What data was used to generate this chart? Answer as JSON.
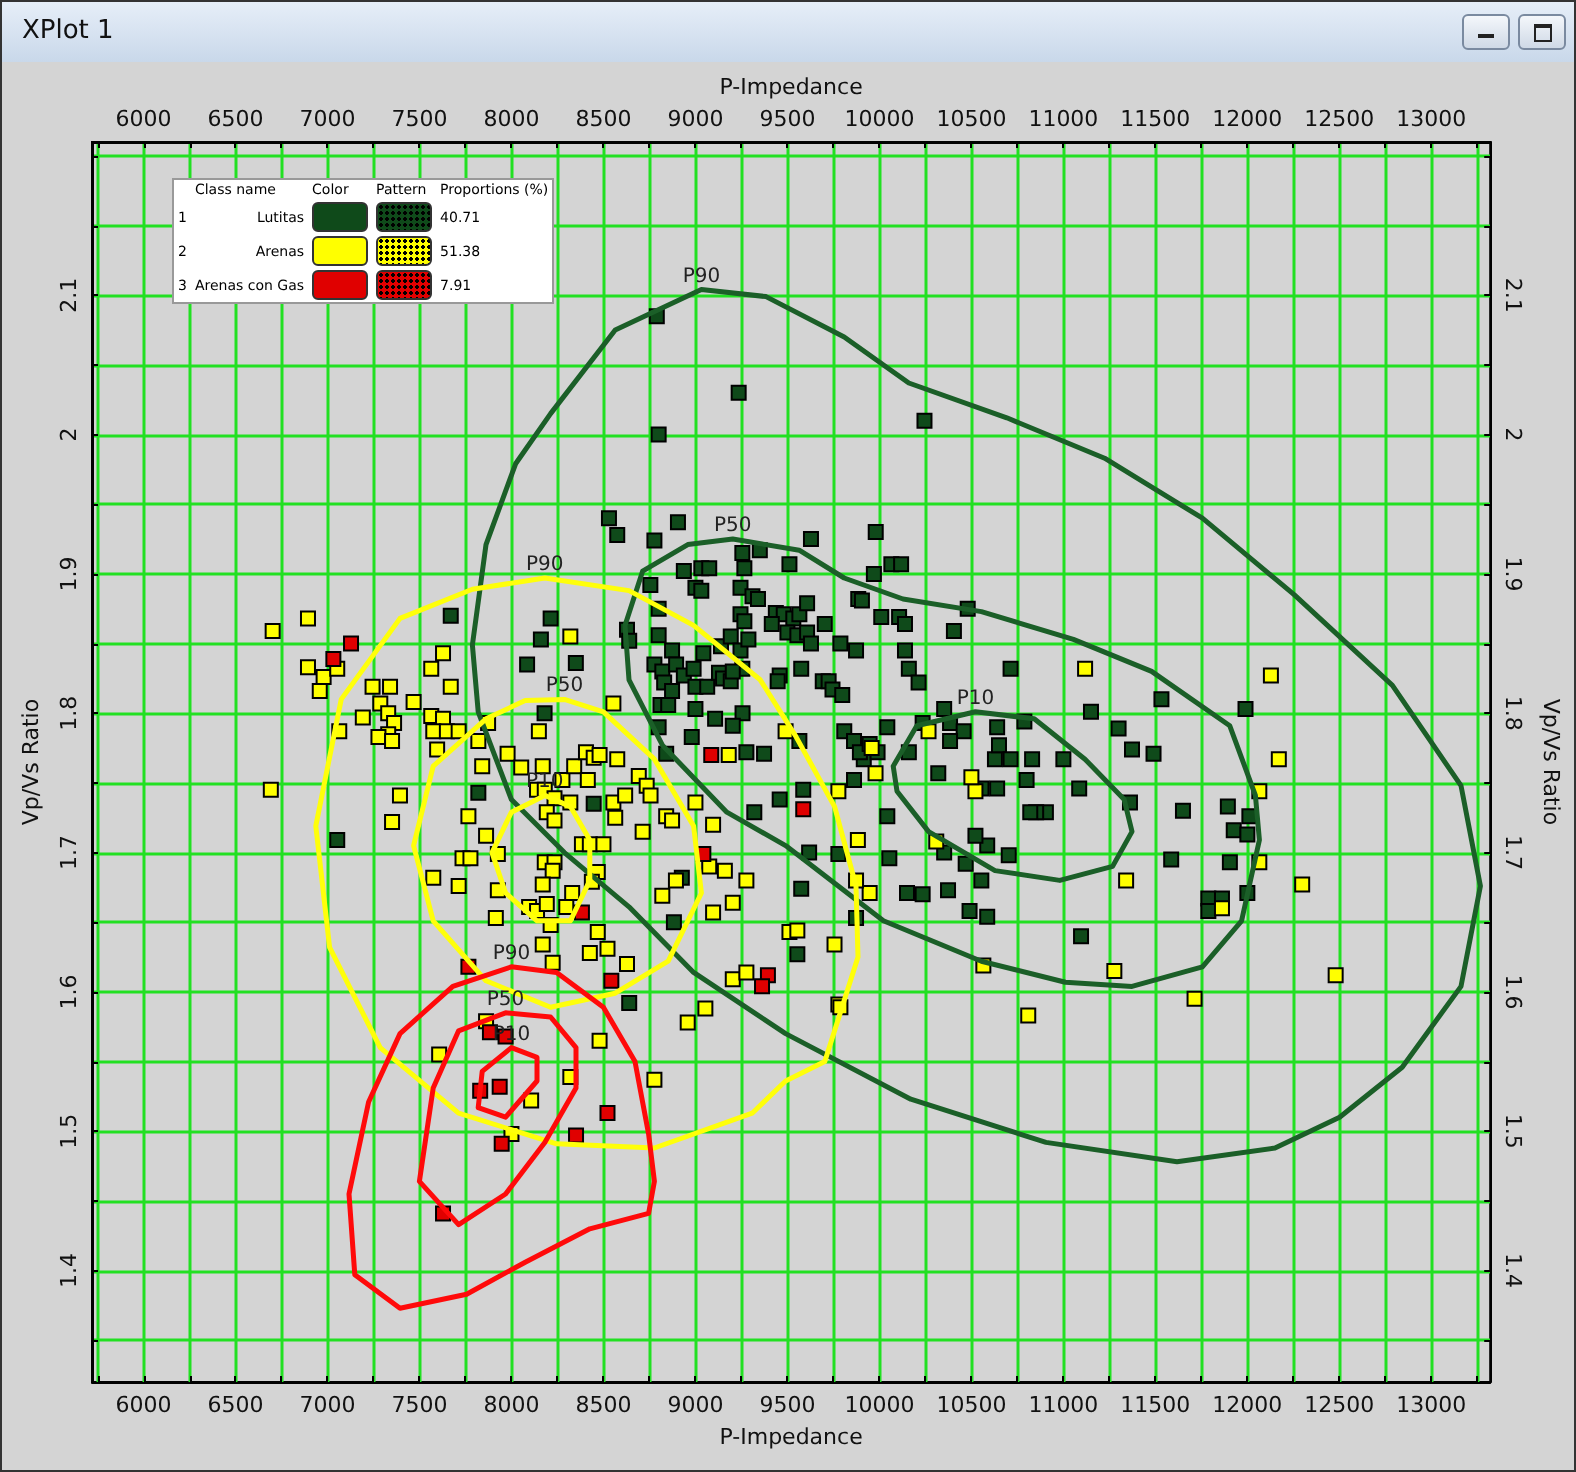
{
  "chart_data": {
    "type": "scatter",
    "title": "XPlot 1",
    "xlabel": "P-Impedance",
    "x2label": "P-Impedance",
    "ylabel": "Vp/Vs Ratio",
    "y2label": "Vp/Vs Ratio",
    "annotations": [
      "Class name",
      "Color",
      "Pattern",
      "Proportions (%)",
      "1",
      "2",
      "3",
      "40.71",
      "51.38",
      "7.91",
      "P90",
      "P50",
      "P10",
      "P90",
      "P50",
      "P10",
      "P90",
      "P50",
      "P10"
    ],
    "xlim": [
      5720,
      13320
    ],
    "x2lim": [
      5720,
      13320
    ],
    "ylim": [
      1.32,
      2.21
    ],
    "y2lim": [
      1.32,
      2.21
    ],
    "xticks": [
      {
        "value": 5750,
        "label": null
      },
      6000,
      {
        "value": 6250,
        "label": null
      },
      6500,
      {
        "value": 6750,
        "label": null
      },
      7000,
      {
        "value": 7250,
        "label": null
      },
      7500,
      {
        "value": 7750,
        "label": null
      },
      8000,
      {
        "value": 8250,
        "label": null
      },
      8500,
      {
        "value": 8750,
        "label": null
      },
      9000,
      {
        "value": 9250,
        "label": null
      },
      9500,
      {
        "value": 9750,
        "label": null
      },
      10000,
      {
        "value": 10250,
        "label": null
      },
      10500,
      {
        "value": 10750,
        "label": null
      },
      11000,
      {
        "value": 11250,
        "label": null
      },
      11500,
      {
        "value": 11750,
        "label": null
      },
      12000,
      {
        "value": 12250,
        "label": null
      },
      12500,
      {
        "value": 12750,
        "label": null
      },
      13000,
      {
        "value": 13250,
        "label": null
      }
    ],
    "x2ticks": [
      {
        "value": 5750,
        "label": null
      },
      6000,
      {
        "value": 6250,
        "label": null
      },
      6500,
      {
        "value": 6750,
        "label": null
      },
      7000,
      {
        "value": 7250,
        "label": null
      },
      7500,
      {
        "value": 7750,
        "label": null
      },
      8000,
      {
        "value": 8250,
        "label": null
      },
      8500,
      {
        "value": 8750,
        "label": null
      },
      9000,
      {
        "value": 9250,
        "label": null
      },
      9500,
      {
        "value": 9750,
        "label": null
      },
      10000,
      {
        "value": 10250,
        "label": null
      },
      10500,
      {
        "value": 10750,
        "label": null
      },
      11000,
      {
        "value": 11250,
        "label": null
      },
      11500,
      {
        "value": 11750,
        "label": null
      },
      12000,
      {
        "value": 12250,
        "label": null
      },
      12500,
      {
        "value": 12750,
        "label": null
      },
      13000,
      {
        "value": 13250,
        "label": null
      }
    ],
    "yticks": [
      {
        "value": 1.35,
        "label": null
      },
      1.4,
      {
        "value": 1.45,
        "label": null
      },
      1.5,
      {
        "value": 1.55,
        "label": null
      },
      1.6,
      {
        "value": 1.65,
        "label": null
      },
      1.7,
      {
        "value": 1.75,
        "label": null
      },
      1.8,
      {
        "value": 1.85,
        "label": null
      },
      1.9,
      {
        "value": 1.95,
        "label": null
      },
      {
        "value": 2.0,
        "label": "2"
      },
      {
        "value": 2.05,
        "label": null
      },
      2.1,
      {
        "value": 2.15,
        "label": null
      },
      {
        "value": 2.2,
        "label": null
      }
    ],
    "y2ticks": [
      {
        "value": 1.35,
        "label": null
      },
      1.4,
      {
        "value": 1.45,
        "label": null
      },
      1.5,
      {
        "value": 1.55,
        "label": null
      },
      1.6,
      {
        "value": 1.65,
        "label": null
      },
      1.7,
      {
        "value": 1.75,
        "label": null
      },
      1.8,
      {
        "value": 1.85,
        "label": null
      },
      1.9,
      {
        "value": 1.95,
        "label": null
      },
      {
        "value": 2.0,
        "label": "2"
      },
      {
        "value": 2.05,
        "label": null
      },
      2.1,
      {
        "value": 2.15,
        "label": null
      },
      {
        "value": 2.2,
        "label": null
      }
    ],
    "grid": true,
    "legend": "top left",
    "marker": "square",
    "series": [
      {
        "name": "Lutitas",
        "color": "#0f4a1a",
        "x": [
          8790,
          9235,
          10245,
          8800,
          8530,
          8575,
          8777,
          8905,
          9628,
          9980,
          10065,
          10118,
          9970,
          9255,
          9350,
          9032,
          9075,
          8937,
          9511,
          9266,
          9000,
          9032,
          9245,
          9310,
          9340,
          8755,
          8800,
          9245,
          9266,
          9437,
          9480,
          9532,
          9565,
          9607,
          9415,
          9500,
          9554,
          9607,
          9628,
          9885,
          9905,
          9703,
          10010,
          10107,
          10139,
          10480,
          10405,
          8628,
          8640,
          8800,
          9043,
          9139,
          9192,
          9245,
          9288,
          9255,
          9575,
          9788,
          9873,
          10139,
          10160,
          10213,
          10713,
          8350,
          8777,
          8820,
          8873,
          8895,
          8937,
          8990,
          8830,
          8873,
          9000,
          9064,
          9128,
          9150,
          9192,
          9203,
          9458,
          9447,
          9692,
          9724,
          9745,
          9798,
          8810,
          8852,
          9000,
          9256,
          9107,
          9203,
          10352,
          10235,
          10384,
          10458,
          10640,
          10788,
          11150,
          11533,
          11990,
          8800,
          8980,
          9277,
          9373,
          9565,
          9809,
          9862,
          9915,
          9990,
          10043,
          10160,
          10320,
          10384,
          10628,
          10650,
          10713,
          10830,
          11000,
          11086,
          11300,
          11373,
          11490,
          10555,
          10640,
          10800,
          11905,
          11788,
          11862,
          11788,
          12000,
          11650,
          11894,
          11926,
          12000,
          12011,
          11586,
          11096,
          10554,
          10490,
          10586,
          10150,
          10235,
          10373,
          10905,
          10852,
          10820,
          11362,
          10703,
          10586,
          10522,
          10469,
          10352,
          10043,
          10054,
          9777,
          9618,
          9575,
          9554,
          9873,
          7670,
          8213,
          8160,
          8085,
          7053,
          7820,
          8447,
          8926,
          8883,
          8640,
          9458,
          9320,
          9586,
          9862,
          9894,
          9947,
          8180,
          8841
        ],
        "values": [
          2.085,
          2.03,
          2.01,
          2.0,
          1.94,
          1.928,
          1.924,
          1.937,
          1.925,
          1.93,
          1.907,
          1.907,
          1.9,
          1.915,
          1.917,
          1.904,
          1.904,
          1.902,
          1.907,
          1.904,
          1.89,
          1.888,
          1.89,
          1.884,
          1.882,
          1.892,
          1.875,
          1.871,
          1.866,
          1.872,
          1.871,
          1.868,
          1.871,
          1.879,
          1.864,
          1.858,
          1.856,
          1.858,
          1.85,
          1.882,
          1.881,
          1.864,
          1.869,
          1.869,
          1.864,
          1.875,
          1.859,
          1.86,
          1.852,
          1.856,
          1.843,
          1.848,
          1.855,
          1.845,
          1.853,
          1.832,
          1.832,
          1.85,
          1.845,
          1.845,
          1.832,
          1.822,
          1.832,
          1.836,
          1.835,
          1.83,
          1.845,
          1.835,
          1.827,
          1.832,
          1.822,
          1.816,
          1.819,
          1.819,
          1.829,
          1.825,
          1.823,
          1.83,
          1.827,
          1.823,
          1.823,
          1.823,
          1.817,
          1.813,
          1.806,
          1.806,
          1.803,
          1.8,
          1.796,
          1.791,
          1.803,
          1.793,
          1.793,
          1.787,
          1.79,
          1.794,
          1.801,
          1.81,
          1.803,
          1.79,
          1.783,
          1.772,
          1.771,
          1.78,
          1.787,
          1.78,
          1.767,
          1.772,
          1.79,
          1.772,
          1.757,
          1.78,
          1.767,
          1.777,
          1.767,
          1.767,
          1.767,
          1.746,
          1.789,
          1.774,
          1.771,
          1.746,
          1.746,
          1.752,
          1.693,
          1.667,
          1.667,
          1.658,
          1.671,
          1.73,
          1.733,
          1.716,
          1.713,
          1.726,
          1.695,
          1.64,
          1.68,
          1.658,
          1.654,
          1.671,
          1.67,
          1.673,
          1.729,
          1.729,
          1.729,
          1.736,
          1.698,
          1.705,
          1.712,
          1.692,
          1.7,
          1.726,
          1.696,
          1.699,
          1.7,
          1.674,
          1.627,
          1.653,
          1.87,
          1.868,
          1.853,
          1.835,
          1.709,
          1.743,
          1.735,
          1.682,
          1.65,
          1.592,
          1.738,
          1.729,
          1.745,
          1.752,
          1.772,
          1.778,
          1.8,
          1.771
        ]
      },
      {
        "name": "Arenas",
        "color": "#ffff00",
        "x": [
          6702,
          6894,
          6894,
          6979,
          6958,
          7053,
          7245,
          7340,
          7287,
          7330,
          7362,
          7330,
          7277,
          7351,
          7192,
          7064,
          7468,
          7564,
          7628,
          7670,
          7564,
          7628,
          7575,
          7649,
          7713,
          7596,
          6692,
          7394,
          7351,
          7575,
          7713,
          7734,
          7777,
          7873,
          7820,
          7841,
          7979,
          7766,
          7862,
          7926,
          7926,
          7915,
          8053,
          8170,
          8149,
          8320,
          8554,
          8139,
          8181,
          8234,
          8192,
          8234,
          8320,
          8277,
          8341,
          8415,
          8405,
          8447,
          8479,
          8575,
          8383,
          8426,
          8500,
          8469,
          8437,
          8181,
          8234,
          8224,
          8170,
          8096,
          8139,
          8192,
          8298,
          8330,
          8213,
          8170,
          8224,
          8469,
          8426,
          8522,
          8628,
          8554,
          8618,
          8692,
          8735,
          8756,
          8564,
          8713,
          8841,
          8873,
          8820,
          8894,
          9075,
          9160,
          9277,
          9203,
          9096,
          9000,
          9096,
          9181,
          9490,
          9511,
          9554,
          9756,
          9203,
          9277,
          9054,
          8958,
          8479,
          9777,
          9777,
          9883,
          9947,
          9873,
          11118,
          12128,
          12171,
          12065,
          12065,
          12298,
          12480,
          11341,
          11277,
          11713,
          10809,
          10565,
          11862,
          10522,
          10500,
          10309,
          9958,
          9979,
          9788,
          10267,
          7607,
          8107,
          8320,
          8777,
          8000,
          7862
        ],
        "values": [
          1.859,
          1.868,
          1.833,
          1.826,
          1.816,
          1.832,
          1.819,
          1.819,
          1.807,
          1.8,
          1.793,
          1.785,
          1.783,
          1.78,
          1.797,
          1.787,
          1.808,
          1.832,
          1.843,
          1.819,
          1.798,
          1.796,
          1.787,
          1.787,
          1.787,
          1.774,
          1.745,
          1.741,
          1.722,
          1.682,
          1.676,
          1.696,
          1.696,
          1.793,
          1.78,
          1.762,
          1.771,
          1.726,
          1.712,
          1.699,
          1.673,
          1.653,
          1.761,
          1.762,
          1.787,
          1.855,
          1.807,
          1.745,
          1.745,
          1.739,
          1.729,
          1.723,
          1.736,
          1.752,
          1.762,
          1.752,
          1.772,
          1.768,
          1.77,
          1.767,
          1.706,
          1.706,
          1.706,
          1.686,
          1.679,
          1.693,
          1.693,
          1.687,
          1.677,
          1.661,
          1.658,
          1.663,
          1.661,
          1.671,
          1.648,
          1.634,
          1.621,
          1.643,
          1.628,
          1.631,
          1.62,
          1.736,
          1.741,
          1.755,
          1.748,
          1.741,
          1.725,
          1.715,
          1.726,
          1.723,
          1.669,
          1.68,
          1.69,
          1.687,
          1.68,
          1.664,
          1.657,
          1.736,
          1.72,
          1.77,
          1.787,
          1.643,
          1.644,
          1.634,
          1.609,
          1.614,
          1.588,
          1.578,
          1.565,
          1.591,
          1.744,
          1.709,
          1.671,
          1.68,
          1.832,
          1.827,
          1.767,
          1.744,
          1.693,
          1.677,
          1.612,
          1.68,
          1.615,
          1.595,
          1.583,
          1.619,
          1.66,
          1.744,
          1.754,
          1.708,
          1.775,
          1.757,
          1.589,
          1.787,
          1.555,
          1.522,
          1.539,
          1.537,
          1.498,
          1.579
        ]
      },
      {
        "name": "Arenas con Gas",
        "color": "#e00000",
        "x": [
          7128,
          7032,
          9086,
          9586,
          9043,
          8383,
          8543,
          9394,
          9362,
          7766,
          7883,
          7968,
          7830,
          7936,
          7947,
          8351,
          8522,
          7628
        ],
        "values": [
          1.85,
          1.839,
          1.77,
          1.731,
          1.699,
          1.657,
          1.608,
          1.612,
          1.604,
          1.618,
          1.571,
          1.568,
          1.529,
          1.532,
          1.491,
          1.497,
          1.513,
          1.441
        ]
      }
    ]
  }
}
